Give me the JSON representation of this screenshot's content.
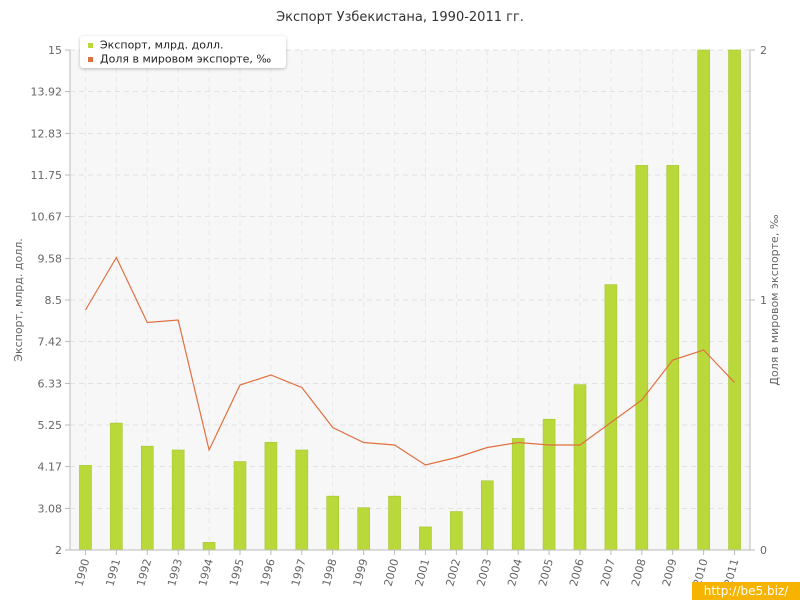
{
  "chart_data": {
    "type": "bar",
    "title": "Экспорт Узбекистана, 1990-2011 гг.",
    "ylabel": "Экспорт, млрд. долл.",
    "y2label": "Доля в мировом экспорте, ‰",
    "categories": [
      "1990",
      "1991",
      "1992",
      "1993",
      "1994",
      "1995",
      "1996",
      "1997",
      "1998",
      "1999",
      "2000",
      "2001",
      "2002",
      "2003",
      "2004",
      "2005",
      "2006",
      "2007",
      "2008",
      "2009",
      "2010",
      "2011"
    ],
    "yticks": [
      "2",
      "3.08",
      "4.17",
      "5.25",
      "6.33",
      "7.42",
      "8.5",
      "9.58",
      "10.67",
      "11.75",
      "12.83",
      "13.92",
      "15"
    ],
    "ylim": [
      2,
      15
    ],
    "y2ticks": [
      "0",
      "1",
      "2"
    ],
    "y2lim": [
      0,
      2
    ],
    "series": [
      {
        "name": "Экспорт, млрд. долл.",
        "type": "bar",
        "color": "#b9d93a",
        "values": [
          4.2,
          5.3,
          4.7,
          4.6,
          2.2,
          4.3,
          4.8,
          4.6,
          3.4,
          3.1,
          3.4,
          2.6,
          3.0,
          3.8,
          4.9,
          5.4,
          6.3,
          8.9,
          12.0,
          12.0,
          15.0,
          15.0
        ]
      },
      {
        "name": "Доля в мировом экспорте, ‰",
        "type": "line",
        "color": "#e07040",
        "axis": "right",
        "values": [
          0.96,
          1.17,
          0.91,
          0.92,
          0.4,
          0.66,
          0.7,
          0.65,
          0.49,
          0.43,
          0.42,
          0.34,
          0.37,
          0.41,
          0.43,
          0.42,
          0.42,
          0.51,
          0.6,
          0.76,
          0.8,
          0.67
        ]
      }
    ],
    "grid": true,
    "legend": "top-left"
  },
  "watermark": "http://be5.biz/"
}
